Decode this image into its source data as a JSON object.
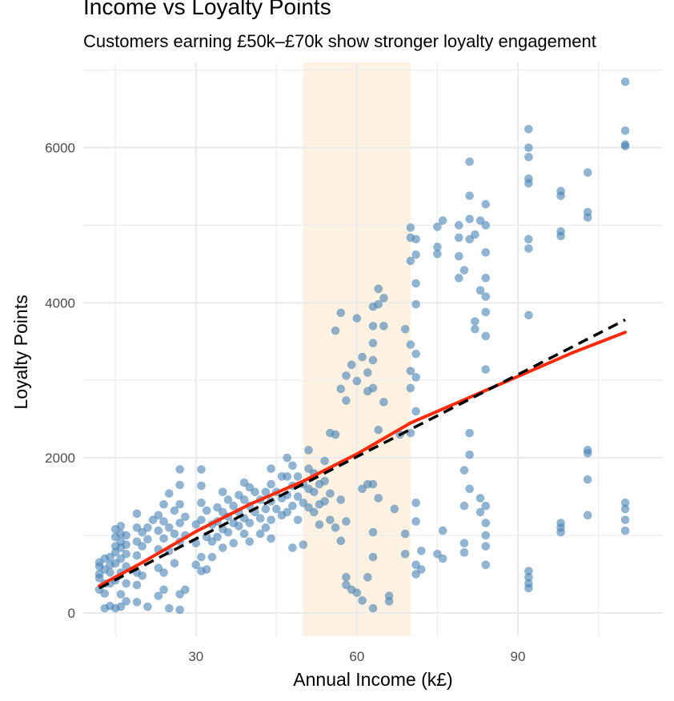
{
  "chart_data": {
    "type": "scatter",
    "title": "Income vs Loyalty Points",
    "subtitle": "Customers earning £50k–£70k show stronger loyalty engagement",
    "xlabel": "Annual Income (k£)",
    "ylabel": "Loyalty Points",
    "xlim": [
      9,
      117
    ],
    "ylim": [
      -300,
      7100
    ],
    "x_ticks": [
      30,
      60,
      90
    ],
    "y_ticks": [
      0,
      2000,
      4000,
      6000
    ],
    "grid": true,
    "legend": "none",
    "highlight_band": {
      "x": [
        50,
        70
      ],
      "color": "#fdf1e1"
    },
    "colors": {
      "points": "#4682b4",
      "loess": "#ff2a0a",
      "linear_fit": "#000000",
      "grid": "#ebebeb"
    },
    "series": [
      {
        "type": "scatter",
        "points": [
          [
            12,
            600
          ],
          [
            12,
            450
          ],
          [
            12,
            300
          ],
          [
            12,
            650
          ],
          [
            12,
            500
          ],
          [
            13,
            700
          ],
          [
            13,
            560
          ],
          [
            13,
            380
          ],
          [
            13,
            60
          ],
          [
            13,
            250
          ],
          [
            14,
            720
          ],
          [
            14,
            520
          ],
          [
            14,
            380
          ],
          [
            14,
            620
          ],
          [
            14,
            90
          ],
          [
            15,
            980
          ],
          [
            15,
            780
          ],
          [
            15,
            640
          ],
          [
            15,
            420
          ],
          [
            15,
            60
          ],
          [
            15,
            1080
          ],
          [
            15,
            860
          ],
          [
            16,
            1120
          ],
          [
            16,
            920
          ],
          [
            16,
            700
          ],
          [
            16,
            520
          ],
          [
            16,
            240
          ],
          [
            16,
            80
          ],
          [
            16,
            1020
          ],
          [
            16,
            840
          ],
          [
            17,
            1000
          ],
          [
            17,
            760
          ],
          [
            17,
            600
          ],
          [
            17,
            380
          ],
          [
            17,
            150
          ],
          [
            17,
            880
          ],
          [
            19,
            1280
          ],
          [
            19,
            1100
          ],
          [
            19,
            920
          ],
          [
            19,
            740
          ],
          [
            19,
            520
          ],
          [
            19,
            360
          ],
          [
            19,
            140
          ],
          [
            20,
            1040
          ],
          [
            20,
            860
          ],
          [
            20,
            480
          ],
          [
            21,
            80
          ],
          [
            21,
            1100
          ],
          [
            21,
            950
          ],
          [
            22,
            1200
          ],
          [
            23,
            1260
          ],
          [
            23,
            1060
          ],
          [
            23,
            820
          ],
          [
            23,
            580
          ],
          [
            23,
            220
          ],
          [
            24,
            1400
          ],
          [
            24,
            1180
          ],
          [
            24,
            960
          ],
          [
            24,
            520
          ],
          [
            24,
            300
          ],
          [
            25,
            1540
          ],
          [
            25,
            1100
          ],
          [
            25,
            800
          ],
          [
            25,
            60
          ],
          [
            26,
            1320
          ],
          [
            26,
            1020
          ],
          [
            26,
            640
          ],
          [
            27,
            1850
          ],
          [
            27,
            1650
          ],
          [
            27,
            1400
          ],
          [
            27,
            1160
          ],
          [
            27,
            920
          ],
          [
            27,
            240
          ],
          [
            27,
            40
          ],
          [
            28,
            1240
          ],
          [
            28,
            1000
          ],
          [
            28,
            300
          ],
          [
            30,
            1140
          ],
          [
            30,
            900
          ],
          [
            30,
            620
          ],
          [
            31,
            1850
          ],
          [
            31,
            1640
          ],
          [
            31,
            1420
          ],
          [
            31,
            1200
          ],
          [
            31,
            720
          ],
          [
            31,
            540
          ],
          [
            32,
            1320
          ],
          [
            32,
            980
          ],
          [
            32,
            560
          ],
          [
            33,
            1140
          ],
          [
            33,
            920
          ],
          [
            33,
            720
          ],
          [
            34,
            1360
          ],
          [
            34,
            1180
          ],
          [
            34,
            980
          ],
          [
            35,
            1560
          ],
          [
            35,
            1300
          ],
          [
            35,
            1080
          ],
          [
            35,
            840
          ],
          [
            36,
            1460
          ],
          [
            36,
            1240
          ],
          [
            36,
            1040
          ],
          [
            37,
            1380
          ],
          [
            37,
            1160
          ],
          [
            37,
            900
          ],
          [
            38,
            1520
          ],
          [
            38,
            1300
          ],
          [
            38,
            1120
          ],
          [
            39,
            1680
          ],
          [
            39,
            1460
          ],
          [
            39,
            1220
          ],
          [
            39,
            1020
          ],
          [
            40,
            1620
          ],
          [
            40,
            1380
          ],
          [
            40,
            1160
          ],
          [
            40,
            920
          ],
          [
            41,
            1560
          ],
          [
            41,
            1300
          ],
          [
            42,
            1460
          ],
          [
            42,
            1220
          ],
          [
            42,
            1020
          ],
          [
            43,
            1560
          ],
          [
            43,
            1340
          ],
          [
            43,
            1100
          ],
          [
            44,
            1860
          ],
          [
            44,
            1660
          ],
          [
            44,
            1440
          ],
          [
            44,
            1200
          ],
          [
            44,
            960
          ],
          [
            45,
            1560
          ],
          [
            45,
            1340
          ],
          [
            46,
            1760
          ],
          [
            46,
            1480
          ],
          [
            46,
            1260
          ],
          [
            47,
            2000
          ],
          [
            47,
            1760
          ],
          [
            47,
            1520
          ],
          [
            47,
            1300
          ],
          [
            48,
            1900
          ],
          [
            48,
            1640
          ],
          [
            48,
            1380
          ],
          [
            48,
            840
          ],
          [
            49,
            1760
          ],
          [
            49,
            1500
          ],
          [
            49,
            1200
          ],
          [
            50,
            1660
          ],
          [
            50,
            1420
          ],
          [
            50,
            880
          ],
          [
            51,
            2100
          ],
          [
            51,
            1860
          ],
          [
            51,
            1600
          ],
          [
            51,
            1360
          ],
          [
            52,
            1800
          ],
          [
            52,
            1560
          ],
          [
            52,
            1300
          ],
          [
            53,
            1660
          ],
          [
            53,
            1400
          ],
          [
            53,
            1140
          ],
          [
            54,
            1960
          ],
          [
            54,
            1700
          ],
          [
            54,
            1440
          ],
          [
            55,
            1540
          ],
          [
            55,
            1200
          ],
          [
            55,
            2320
          ],
          [
            56,
            2300
          ],
          [
            56,
            3640
          ],
          [
            56,
            1100
          ],
          [
            57,
            2890
          ],
          [
            57,
            3870
          ],
          [
            57,
            1460
          ],
          [
            57,
            930
          ],
          [
            58,
            3060
          ],
          [
            58,
            2740
          ],
          [
            58,
            1180
          ],
          [
            58,
            460
          ],
          [
            58,
            360
          ],
          [
            59,
            3200
          ],
          [
            59,
            300
          ],
          [
            60,
            2990
          ],
          [
            60,
            3800
          ],
          [
            60,
            260
          ],
          [
            61,
            3300
          ],
          [
            61,
            1600
          ],
          [
            61,
            160
          ],
          [
            62,
            3100
          ],
          [
            62,
            2860
          ],
          [
            62,
            1660
          ],
          [
            62,
            460
          ],
          [
            63,
            3950
          ],
          [
            63,
            3700
          ],
          [
            63,
            3480
          ],
          [
            63,
            3260
          ],
          [
            63,
            2900
          ],
          [
            63,
            1660
          ],
          [
            63,
            1040
          ],
          [
            63,
            720
          ],
          [
            63,
            60
          ],
          [
            64,
            4180
          ],
          [
            64,
            3980
          ],
          [
            64,
            2360
          ],
          [
            64,
            1480
          ],
          [
            65,
            2720
          ],
          [
            65,
            3700
          ],
          [
            65,
            4060
          ],
          [
            66,
            150
          ],
          [
            66,
            220
          ],
          [
            67,
            1340
          ],
          [
            68,
            2300
          ],
          [
            69,
            3660
          ],
          [
            69,
            1020
          ],
          [
            69,
            760
          ],
          [
            70,
            4970
          ],
          [
            70,
            4840
          ],
          [
            70,
            4540
          ],
          [
            70,
            3460
          ],
          [
            70,
            2320
          ],
          [
            70,
            3120
          ],
          [
            70,
            2900
          ],
          [
            71,
            4820
          ],
          [
            71,
            4620
          ],
          [
            71,
            4250
          ],
          [
            71,
            3980
          ],
          [
            71,
            3340
          ],
          [
            71,
            3040
          ],
          [
            71,
            2600
          ],
          [
            71,
            1420
          ],
          [
            71,
            1180
          ],
          [
            71,
            620
          ],
          [
            71,
            500
          ],
          [
            72,
            800
          ],
          [
            72,
            560
          ],
          [
            75,
            4720
          ],
          [
            75,
            4630
          ],
          [
            75,
            4980
          ],
          [
            75,
            760
          ],
          [
            76,
            5060
          ],
          [
            76,
            1060
          ],
          [
            76,
            700
          ],
          [
            79,
            4840
          ],
          [
            79,
            5000
          ],
          [
            79,
            4600
          ],
          [
            79,
            4320
          ],
          [
            80,
            4420
          ],
          [
            80,
            1840
          ],
          [
            80,
            1380
          ],
          [
            80,
            900
          ],
          [
            80,
            780
          ],
          [
            81,
            5820
          ],
          [
            81,
            5380
          ],
          [
            81,
            5080
          ],
          [
            81,
            4820
          ],
          [
            81,
            2320
          ],
          [
            81,
            2040
          ],
          [
            81,
            1600
          ],
          [
            82,
            4880
          ],
          [
            82,
            3760
          ],
          [
            82,
            3660
          ],
          [
            83,
            5060
          ],
          [
            83,
            4160
          ],
          [
            83,
            1480
          ],
          [
            83,
            1300
          ],
          [
            84,
            5270
          ],
          [
            84,
            5000
          ],
          [
            84,
            4650
          ],
          [
            84,
            4320
          ],
          [
            84,
            4080
          ],
          [
            84,
            3880
          ],
          [
            84,
            3570
          ],
          [
            84,
            3140
          ],
          [
            84,
            1380
          ],
          [
            84,
            1160
          ],
          [
            84,
            1000
          ],
          [
            84,
            860
          ],
          [
            84,
            620
          ],
          [
            92,
            6240
          ],
          [
            92,
            6000
          ],
          [
            92,
            5880
          ],
          [
            92,
            5600
          ],
          [
            92,
            5540
          ],
          [
            92,
            4820
          ],
          [
            92,
            4700
          ],
          [
            92,
            3840
          ],
          [
            92,
            540
          ],
          [
            92,
            460
          ],
          [
            92,
            380
          ],
          [
            92,
            320
          ],
          [
            98,
            5440
          ],
          [
            98,
            5380
          ],
          [
            98,
            4920
          ],
          [
            98,
            4860
          ],
          [
            98,
            1160
          ],
          [
            98,
            1100
          ],
          [
            98,
            1040
          ],
          [
            103,
            5680
          ],
          [
            103,
            5170
          ],
          [
            103,
            5100
          ],
          [
            103,
            2100
          ],
          [
            103,
            2060
          ],
          [
            103,
            1720
          ],
          [
            103,
            1260
          ],
          [
            110,
            6850
          ],
          [
            110,
            6220
          ],
          [
            110,
            6040
          ],
          [
            110,
            6020
          ],
          [
            110,
            1420
          ],
          [
            110,
            1340
          ],
          [
            110,
            1200
          ],
          [
            110,
            1060
          ]
        ]
      },
      {
        "type": "line",
        "style": "solid",
        "points": [
          [
            12,
            350
          ],
          [
            20,
            650
          ],
          [
            30,
            1050
          ],
          [
            40,
            1400
          ],
          [
            50,
            1700
          ],
          [
            60,
            2050
          ],
          [
            70,
            2450
          ],
          [
            80,
            2750
          ],
          [
            90,
            3050
          ],
          [
            100,
            3350
          ],
          [
            110,
            3620
          ]
        ]
      },
      {
        "type": "line",
        "style": "dashed",
        "points": [
          [
            12,
            320
          ],
          [
            110,
            3780
          ]
        ]
      }
    ]
  }
}
